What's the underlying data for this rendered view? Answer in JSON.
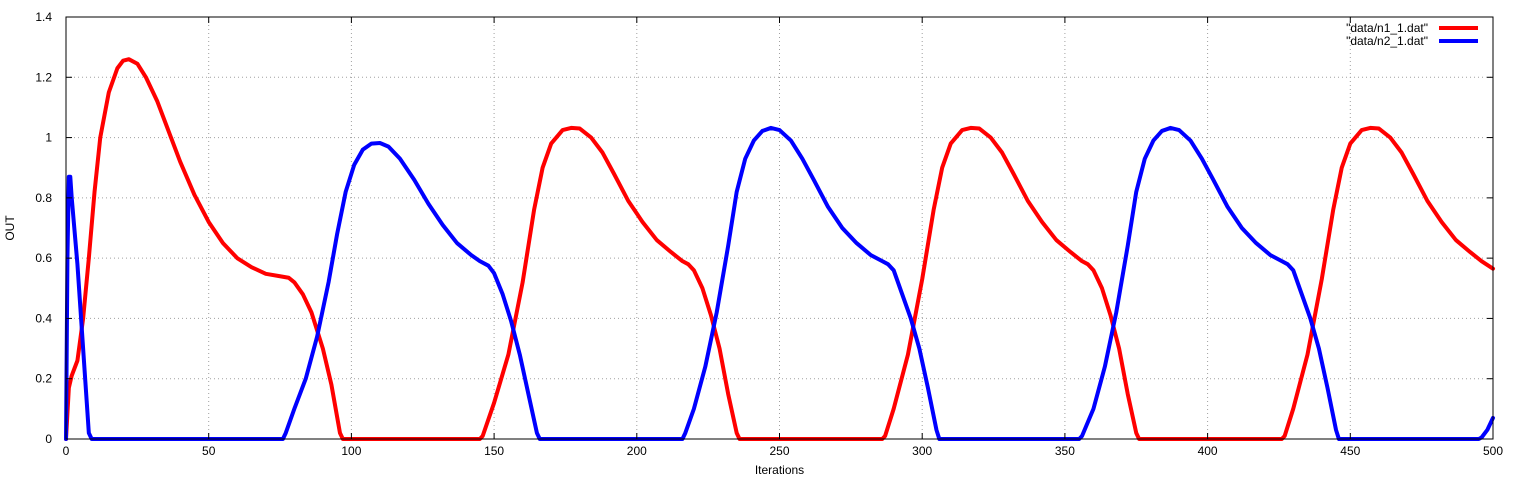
{
  "chart_data": {
    "type": "line",
    "xlabel": "Iterations",
    "ylabel": "OUT",
    "xlim": [
      0,
      500
    ],
    "ylim": [
      0,
      1.4
    ],
    "xticks": [
      0,
      50,
      100,
      150,
      200,
      250,
      300,
      350,
      400,
      450,
      500
    ],
    "yticks": [
      0,
      0.2,
      0.4,
      0.6,
      0.8,
      1,
      1.2,
      1.4
    ],
    "xtick_labels": [
      "0",
      "50",
      "100",
      "150",
      "200",
      "250",
      "300",
      "350",
      "400",
      "450",
      "500"
    ],
    "ytick_labels": [
      "0",
      "0.2",
      "0.4",
      "0.6",
      "0.8",
      "1",
      "1.2",
      "1.4"
    ],
    "grid": true,
    "legend_position": "top-right",
    "series": [
      {
        "name": "\"data/n1_1.dat\"",
        "color": "#ff0000",
        "points": [
          [
            0,
            0
          ],
          [
            1,
            0.17
          ],
          [
            2,
            0.21
          ],
          [
            4,
            0.26
          ],
          [
            6,
            0.4
          ],
          [
            8,
            0.6
          ],
          [
            10,
            0.82
          ],
          [
            12,
            1.0
          ],
          [
            15,
            1.15
          ],
          [
            18,
            1.23
          ],
          [
            20,
            1.255
          ],
          [
            22,
            1.26
          ],
          [
            25,
            1.245
          ],
          [
            28,
            1.2
          ],
          [
            32,
            1.12
          ],
          [
            36,
            1.02
          ],
          [
            40,
            0.92
          ],
          [
            45,
            0.81
          ],
          [
            50,
            0.72
          ],
          [
            55,
            0.65
          ],
          [
            60,
            0.6
          ],
          [
            65,
            0.57
          ],
          [
            70,
            0.548
          ],
          [
            75,
            0.54
          ],
          [
            78,
            0.535
          ],
          [
            80,
            0.52
          ],
          [
            83,
            0.48
          ],
          [
            86,
            0.42
          ],
          [
            90,
            0.3
          ],
          [
            93,
            0.18
          ],
          [
            96,
            0.02
          ],
          [
            97,
            0
          ],
          [
            145,
            0
          ],
          [
            146,
            0.01
          ],
          [
            150,
            0.12
          ],
          [
            155,
            0.28
          ],
          [
            160,
            0.52
          ],
          [
            164,
            0.76
          ],
          [
            167,
            0.9
          ],
          [
            170,
            0.98
          ],
          [
            174,
            1.025
          ],
          [
            177,
            1.032
          ],
          [
            180,
            1.03
          ],
          [
            184,
            1.0
          ],
          [
            188,
            0.95
          ],
          [
            192,
            0.88
          ],
          [
            197,
            0.79
          ],
          [
            202,
            0.72
          ],
          [
            207,
            0.66
          ],
          [
            212,
            0.62
          ],
          [
            216,
            0.59
          ],
          [
            218,
            0.58
          ],
          [
            220,
            0.56
          ],
          [
            223,
            0.5
          ],
          [
            226,
            0.41
          ],
          [
            229,
            0.3
          ],
          [
            232,
            0.15
          ],
          [
            235,
            0.02
          ],
          [
            236,
            0
          ],
          [
            286,
            0
          ],
          [
            287,
            0.01
          ],
          [
            290,
            0.1
          ],
          [
            295,
            0.28
          ],
          [
            300,
            0.53
          ],
          [
            304,
            0.76
          ],
          [
            307,
            0.9
          ],
          [
            310,
            0.98
          ],
          [
            314,
            1.025
          ],
          [
            317,
            1.032
          ],
          [
            320,
            1.03
          ],
          [
            324,
            1.0
          ],
          [
            328,
            0.95
          ],
          [
            332,
            0.88
          ],
          [
            337,
            0.79
          ],
          [
            342,
            0.72
          ],
          [
            347,
            0.66
          ],
          [
            352,
            0.62
          ],
          [
            356,
            0.59
          ],
          [
            358,
            0.58
          ],
          [
            360,
            0.56
          ],
          [
            363,
            0.5
          ],
          [
            366,
            0.41
          ],
          [
            369,
            0.3
          ],
          [
            372,
            0.15
          ],
          [
            375,
            0.02
          ],
          [
            376,
            0
          ],
          [
            426,
            0
          ],
          [
            427,
            0.01
          ],
          [
            430,
            0.1
          ],
          [
            435,
            0.28
          ],
          [
            440,
            0.53
          ],
          [
            444,
            0.76
          ],
          [
            447,
            0.9
          ],
          [
            450,
            0.98
          ],
          [
            454,
            1.025
          ],
          [
            457,
            1.032
          ],
          [
            460,
            1.03
          ],
          [
            464,
            1.0
          ],
          [
            468,
            0.95
          ],
          [
            472,
            0.88
          ],
          [
            477,
            0.79
          ],
          [
            482,
            0.72
          ],
          [
            487,
            0.66
          ],
          [
            492,
            0.62
          ],
          [
            496,
            0.59
          ],
          [
            500,
            0.565
          ]
        ]
      },
      {
        "name": "\"data/n2_1.dat\"",
        "color": "#0000ff",
        "points": [
          [
            0,
            0
          ],
          [
            0.5,
            0.6
          ],
          [
            1,
            0.87
          ],
          [
            1.5,
            0.87
          ],
          [
            2,
            0.8
          ],
          [
            4,
            0.58
          ],
          [
            6,
            0.3
          ],
          [
            8,
            0.02
          ],
          [
            9,
            0
          ],
          [
            76,
            0
          ],
          [
            77,
            0.02
          ],
          [
            80,
            0.1
          ],
          [
            84,
            0.2
          ],
          [
            88,
            0.34
          ],
          [
            92,
            0.52
          ],
          [
            95,
            0.68
          ],
          [
            98,
            0.82
          ],
          [
            101,
            0.91
          ],
          [
            104,
            0.96
          ],
          [
            107,
            0.98
          ],
          [
            110,
            0.982
          ],
          [
            113,
            0.97
          ],
          [
            117,
            0.93
          ],
          [
            122,
            0.86
          ],
          [
            127,
            0.78
          ],
          [
            132,
            0.71
          ],
          [
            137,
            0.65
          ],
          [
            142,
            0.61
          ],
          [
            145,
            0.59
          ],
          [
            148,
            0.575
          ],
          [
            150,
            0.55
          ],
          [
            153,
            0.48
          ],
          [
            156,
            0.39
          ],
          [
            159,
            0.28
          ],
          [
            162,
            0.15
          ],
          [
            165,
            0.02
          ],
          [
            166,
            0
          ],
          [
            216,
            0
          ],
          [
            217,
            0.02
          ],
          [
            220,
            0.1
          ],
          [
            224,
            0.24
          ],
          [
            228,
            0.42
          ],
          [
            232,
            0.64
          ],
          [
            235,
            0.82
          ],
          [
            238,
            0.93
          ],
          [
            241,
            0.99
          ],
          [
            244,
            1.022
          ],
          [
            247,
            1.032
          ],
          [
            250,
            1.025
          ],
          [
            254,
            0.99
          ],
          [
            258,
            0.93
          ],
          [
            262,
            0.86
          ],
          [
            267,
            0.77
          ],
          [
            272,
            0.7
          ],
          [
            277,
            0.65
          ],
          [
            282,
            0.61
          ],
          [
            286,
            0.59
          ],
          [
            288,
            0.58
          ],
          [
            290,
            0.56
          ],
          [
            293,
            0.48
          ],
          [
            296,
            0.4
          ],
          [
            299,
            0.3
          ],
          [
            302,
            0.17
          ],
          [
            305,
            0.03
          ],
          [
            306,
            0
          ],
          [
            355,
            0
          ],
          [
            356,
            0.01
          ],
          [
            360,
            0.1
          ],
          [
            364,
            0.24
          ],
          [
            368,
            0.42
          ],
          [
            372,
            0.64
          ],
          [
            375,
            0.82
          ],
          [
            378,
            0.93
          ],
          [
            381,
            0.99
          ],
          [
            384,
            1.022
          ],
          [
            387,
            1.032
          ],
          [
            390,
            1.025
          ],
          [
            394,
            0.99
          ],
          [
            398,
            0.93
          ],
          [
            402,
            0.86
          ],
          [
            407,
            0.77
          ],
          [
            412,
            0.7
          ],
          [
            417,
            0.65
          ],
          [
            422,
            0.61
          ],
          [
            426,
            0.59
          ],
          [
            428,
            0.58
          ],
          [
            430,
            0.56
          ],
          [
            433,
            0.48
          ],
          [
            436,
            0.4
          ],
          [
            439,
            0.3
          ],
          [
            442,
            0.17
          ],
          [
            445,
            0.03
          ],
          [
            446,
            0
          ],
          [
            495,
            0
          ],
          [
            496,
            0.005
          ],
          [
            498,
            0.03
          ],
          [
            500,
            0.07
          ]
        ]
      }
    ]
  }
}
